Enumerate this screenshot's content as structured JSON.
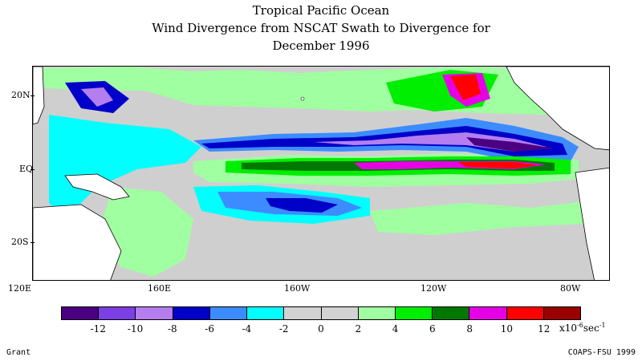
{
  "title": {
    "line1": "Tropical Pacific Ocean",
    "line2": "Wind Divergence from NSCAT Swath to Divergence for",
    "line3": "December 1996"
  },
  "axes": {
    "lat_labels": [
      "20N",
      "EQ",
      "20S"
    ],
    "lon_labels": [
      "120E",
      "160E",
      "160W",
      "120W",
      "80W"
    ]
  },
  "colorbar": {
    "colors": [
      "#4b0082",
      "#7b3fe4",
      "#b47ef0",
      "#0000c8",
      "#3c8cff",
      "#00ffff",
      "#d2d2d2",
      "#d2d2d2",
      "#a0ffa0",
      "#00ee00",
      "#007800",
      "#e600e6",
      "#ff0000",
      "#9b0000"
    ],
    "tick_labels": [
      "-12",
      "-10",
      "-8",
      "-6",
      "-4",
      "-2",
      "0",
      "2",
      "4",
      "6",
      "8",
      "10",
      "12"
    ],
    "units_base": "x10",
    "units_exp": "-6",
    "units_tail": "sec",
    "units_exp2": "-1"
  },
  "map_colors": {
    "background": "#cfcfcf",
    "land": "#ffffff"
  },
  "credits": {
    "left": "Grant",
    "right": "COAPS-FSU 1999"
  }
}
